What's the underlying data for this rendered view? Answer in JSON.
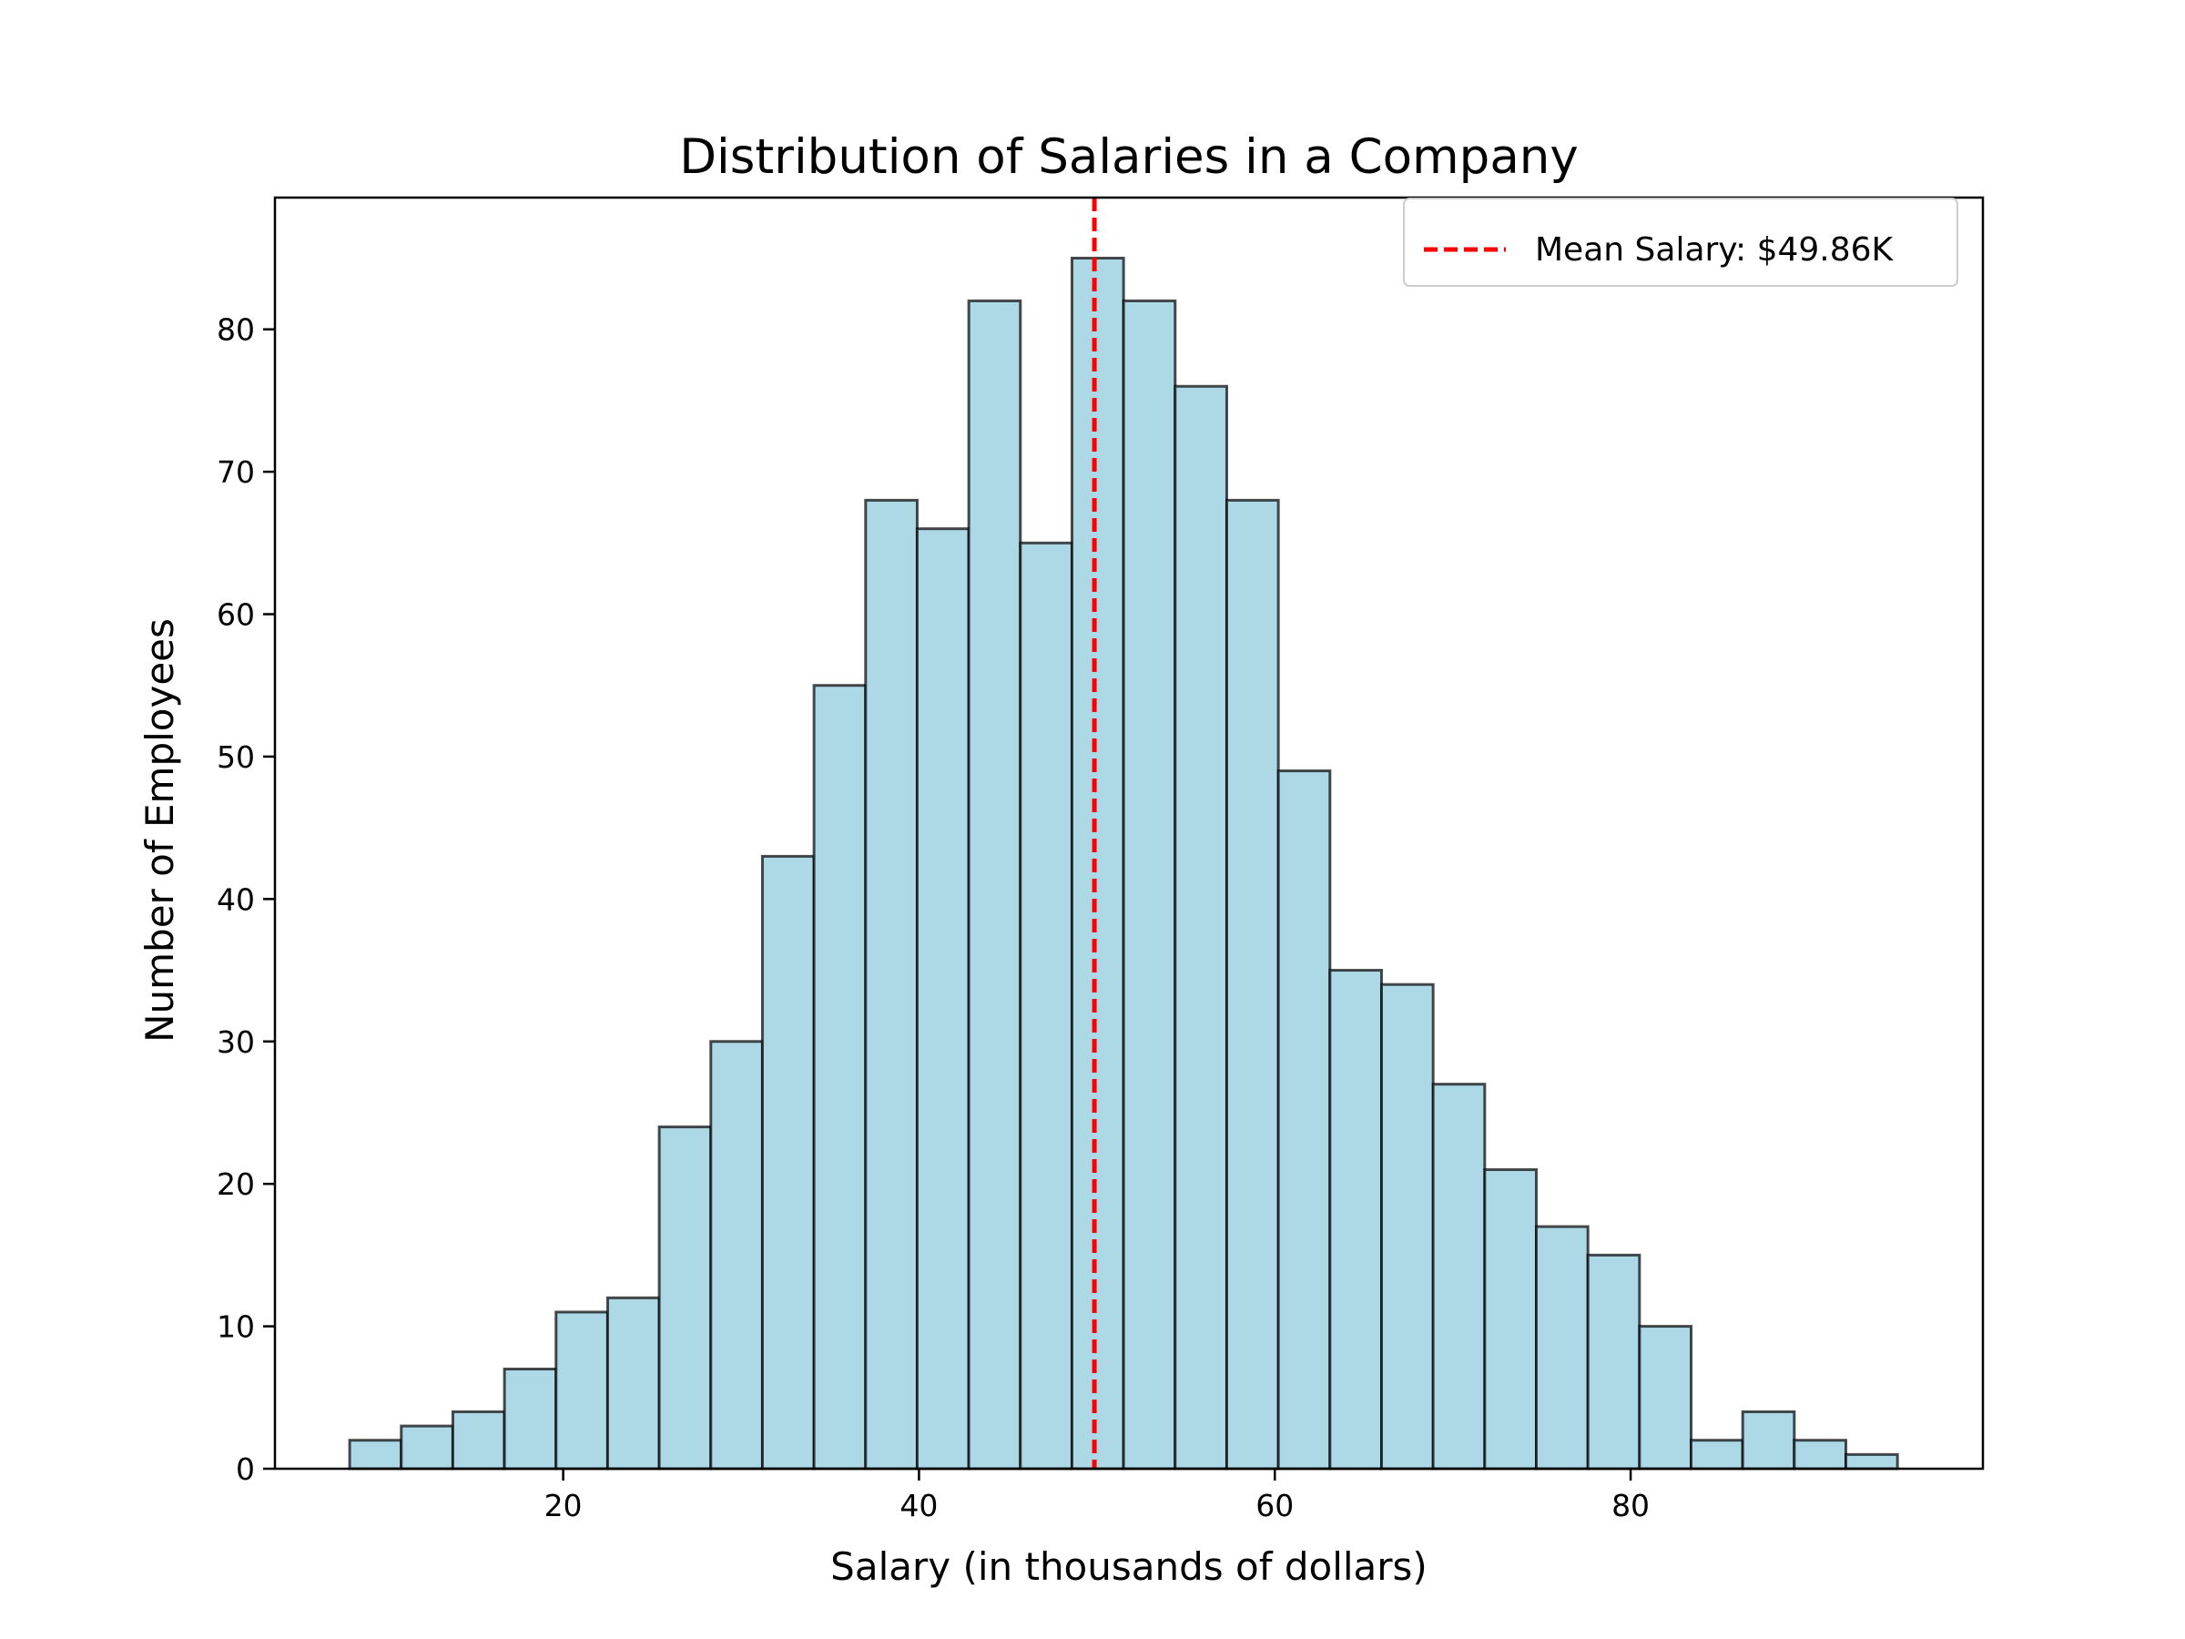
{
  "chart_data": {
    "type": "bar",
    "title": "Distribution of Salaries in a Company",
    "xlabel": "Salary (in thousands of dollars)",
    "ylabel": "Number of Employees",
    "xlim": [
      3.8,
      99.8
    ],
    "ylim": [
      0,
      89.25
    ],
    "x_ticks": [
      20,
      40,
      60,
      80
    ],
    "y_ticks": [
      0,
      10,
      20,
      30,
      40,
      50,
      60,
      70,
      80
    ],
    "bin_start": 8.0,
    "bin_width": 2.9,
    "counts": [
      2,
      3,
      4,
      7,
      11,
      12,
      24,
      30,
      43,
      55,
      68,
      66,
      82,
      65,
      85,
      82,
      76,
      68,
      49,
      35,
      34,
      27,
      21,
      17,
      15,
      10,
      2,
      4,
      2,
      1
    ],
    "mean_line": {
      "x": 49.86,
      "label": "Mean Salary: $49.86K",
      "color": "#ff0000",
      "style": "dashed"
    },
    "bar_color": "#add8e6",
    "bar_edge_color": "#000000",
    "grid": false,
    "legend_position": "top-right"
  }
}
